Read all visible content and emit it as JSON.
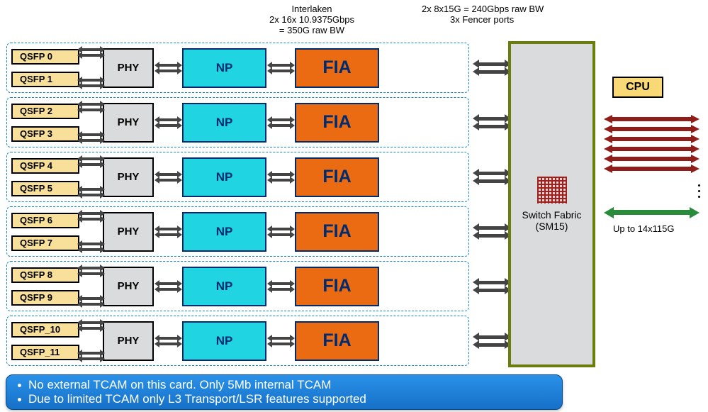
{
  "header": {
    "interlaken": {
      "title": "Interlaken",
      "line1": "2x 16x 10.9375Gbps",
      "line2": "= 350G raw BW"
    },
    "fencer": {
      "line1": "2x 8x15G  = 240Gbps raw BW",
      "line2": "3x Fencer ports"
    }
  },
  "slices": [
    {
      "qsfp": [
        "QSFP 0",
        "QSFP 1"
      ]
    },
    {
      "qsfp": [
        "QSFP 2",
        "QSFP 3"
      ]
    },
    {
      "qsfp": [
        "QSFP 4",
        "QSFP 5"
      ]
    },
    {
      "qsfp": [
        "QSFP 6",
        "QSFP 7"
      ]
    },
    {
      "qsfp": [
        "QSFP 8",
        "QSFP 9"
      ]
    },
    {
      "qsfp": [
        "QSFP_10",
        "QSFP_11"
      ]
    }
  ],
  "labels": {
    "phy": "PHY",
    "np": "NP",
    "fia": "FIA",
    "cpu": "CPU",
    "fabric": "Switch Fabric",
    "fabric_sub": "(SM15)"
  },
  "right": {
    "red_arrow_count": 6,
    "bw_label": "Up to 14x115G"
  },
  "notes": [
    "No external TCAM on this card. Only 5Mb internal TCAM",
    "Due to limited TCAM only L3 Transport/LSR features supported"
  ],
  "colors": {
    "qsfp_bg": "#f8e09a",
    "phy_bg": "#dadbdc",
    "np_bg": "#21d4e1",
    "fia_bg": "#ea6b11",
    "fabric_border": "#6b7d0c",
    "slice_border": "#1188cc",
    "red_arrow": "#8f1d1a",
    "green_arrow": "#2a8c3a",
    "note_bg": "#1670c7",
    "dark_arrow": "#444"
  }
}
